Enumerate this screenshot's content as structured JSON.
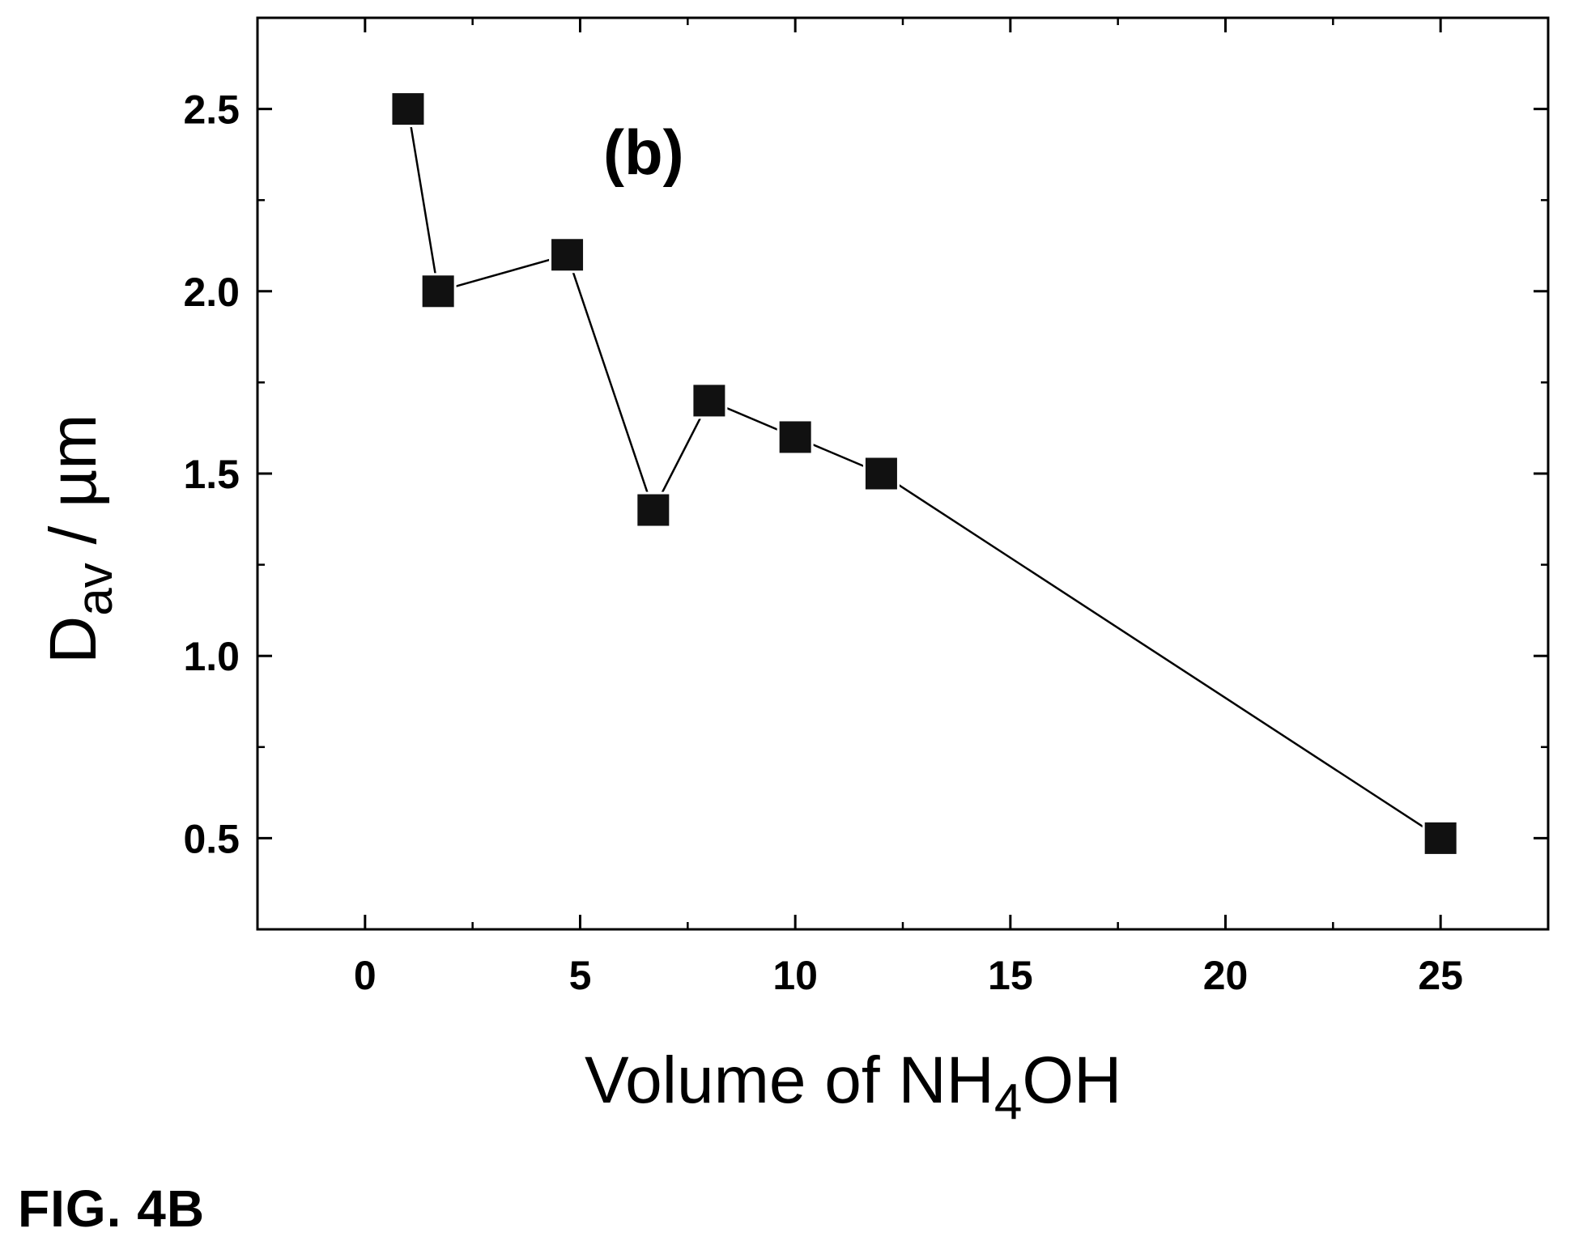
{
  "figure_caption": "FIG. 4B",
  "chart_data": {
    "type": "line",
    "panel_label": "(b)",
    "xlabel": {
      "text": "Volume of NH",
      "subscript": "4",
      "suffix": "OH"
    },
    "ylabel": {
      "text": "D",
      "subscript": "av",
      "suffix": " / µm"
    },
    "xlim": [
      -2.5,
      27.5
    ],
    "ylim": [
      0.25,
      2.75
    ],
    "xticks": [
      0,
      5,
      10,
      15,
      20,
      25
    ],
    "xtick_labels": [
      "0",
      "5",
      "10",
      "15",
      "20",
      "25"
    ],
    "yticks": [
      0.5,
      1.0,
      1.5,
      2.0,
      2.5
    ],
    "ytick_labels": [
      "0.5",
      "1.0",
      "1.5",
      "2.0",
      "2.5"
    ],
    "grid": false,
    "marker": "square",
    "series": [
      {
        "x": [
          1,
          1.7,
          4.7,
          6.7,
          8,
          10,
          12,
          25
        ],
        "y": [
          2.5,
          2.0,
          2.1,
          1.4,
          1.7,
          1.6,
          1.5,
          0.5
        ]
      }
    ],
    "colors": {
      "line": "#000000",
      "marker": "#111111"
    }
  }
}
